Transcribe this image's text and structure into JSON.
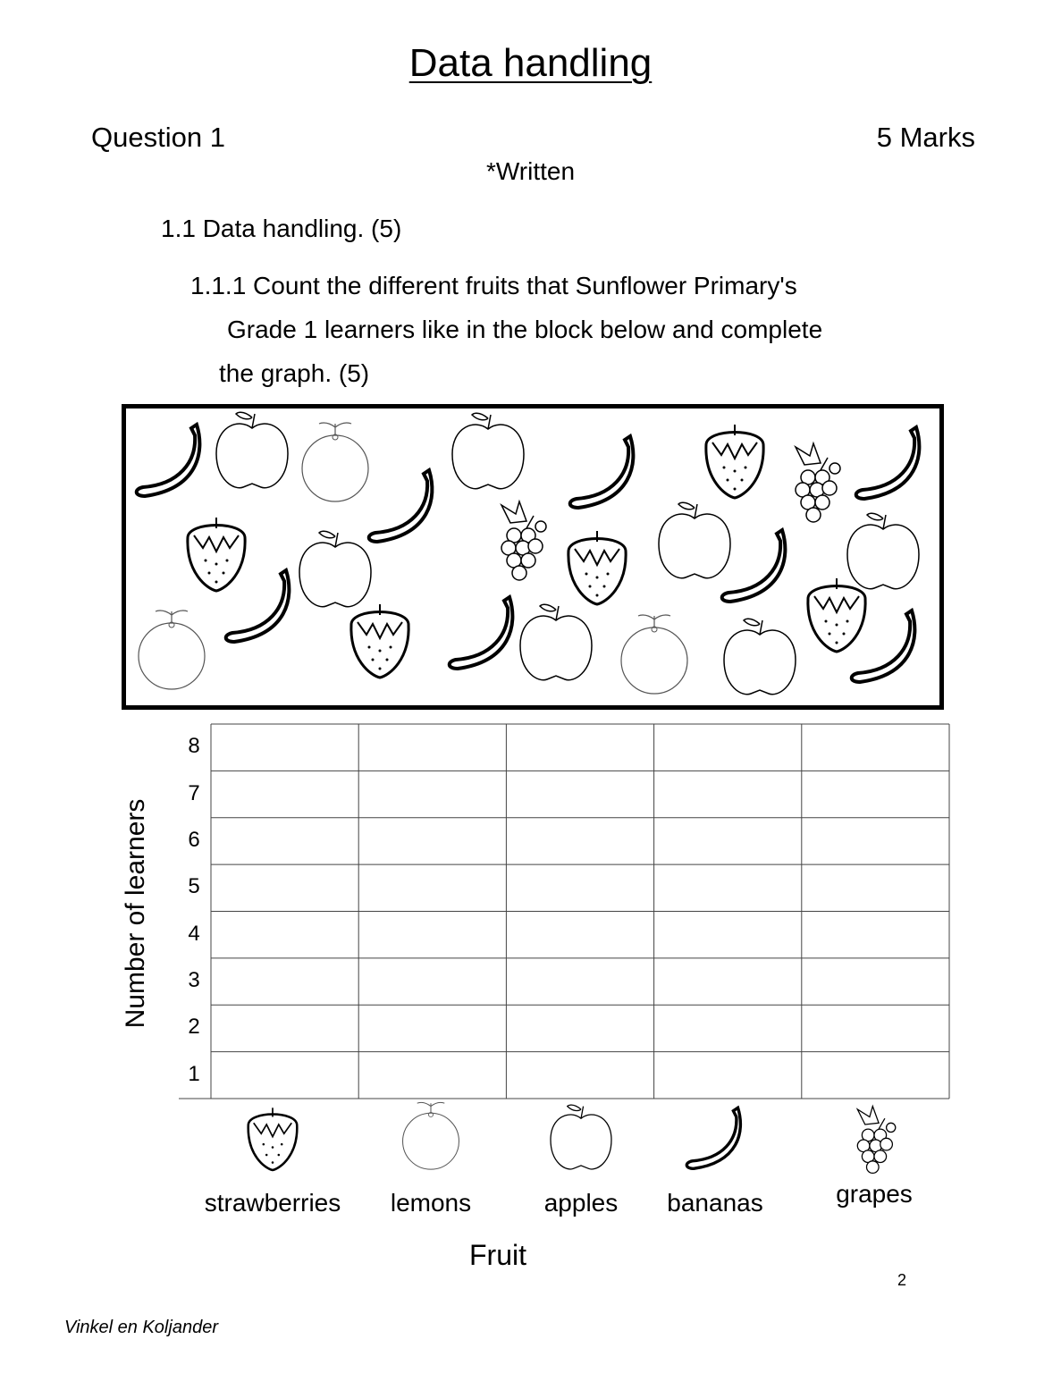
{
  "title": "Data handling",
  "question": {
    "label": "Question 1",
    "marks": "5 Marks",
    "type": "*Written"
  },
  "section": "1.1  Data handling. (5)",
  "instruction": {
    "line1": "1.1.1 Count the different fruits that Sunflower Primary's",
    "line2": "Grade 1 learners like in the block below and complete",
    "line3": "the graph. (5)"
  },
  "fruit_box": {
    "bananas": 8,
    "apples": 7,
    "lemons": 3,
    "strawberries": 5,
    "grapes": 2
  },
  "chart_data": {
    "type": "bar",
    "title": "",
    "xlabel": "Fruit",
    "ylabel": "Number of learners",
    "categories": [
      "strawberries",
      "lemons",
      "apples",
      "bananas",
      "grapes"
    ],
    "category_icons": [
      "strawberry-icon",
      "lemon-icon",
      "apple-icon",
      "banana-icon",
      "grapes-icon"
    ],
    "values": [
      null,
      null,
      null,
      null,
      null
    ],
    "yticks": [
      "1",
      "2",
      "3",
      "4",
      "5",
      "6",
      "7",
      "8"
    ],
    "ylim": [
      0,
      8
    ],
    "grid": true
  },
  "page_number": "2",
  "footer": "Vinkel en Koljander"
}
